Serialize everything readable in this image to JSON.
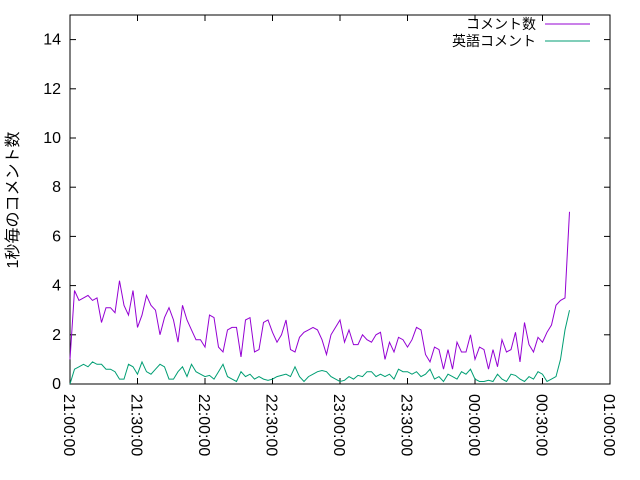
{
  "chart_data": {
    "type": "line",
    "title": "",
    "xlabel": "",
    "ylabel": "1秒毎のコメント数",
    "ylim": [
      0,
      15
    ],
    "xlim": [
      "21:00:00",
      "01:00:00"
    ],
    "y_ticks": [
      "0",
      "2",
      "4",
      "6",
      "8",
      "10",
      "12",
      "14"
    ],
    "x_ticks": [
      "21:00:00",
      "21:30:00",
      "22:00:00",
      "22:30:00",
      "23:00:00",
      "23:30:00",
      "00:00:00",
      "00:30:00",
      "01:00:00"
    ],
    "grid": false,
    "legend_position": "top-right",
    "x_step_minutes": 2,
    "x_start": "21:00",
    "series": [
      {
        "name": "コメント数",
        "color": "#9400d3",
        "values": [
          1.0,
          3.8,
          3.4,
          3.5,
          3.6,
          3.4,
          3.5,
          2.5,
          3.1,
          3.1,
          2.9,
          4.2,
          3.2,
          2.8,
          3.8,
          2.3,
          2.8,
          3.6,
          3.2,
          3.0,
          2.0,
          2.7,
          3.1,
          2.6,
          1.7,
          3.2,
          2.6,
          2.2,
          1.8,
          1.8,
          1.5,
          2.8,
          2.7,
          1.5,
          1.3,
          2.2,
          2.3,
          2.3,
          1.1,
          2.6,
          2.7,
          1.3,
          1.4,
          2.5,
          2.6,
          2.1,
          1.7,
          2.0,
          2.6,
          1.4,
          1.3,
          1.9,
          2.1,
          2.2,
          2.3,
          2.2,
          1.8,
          1.2,
          2.0,
          2.3,
          2.6,
          1.7,
          2.2,
          1.6,
          1.6,
          2.0,
          1.8,
          1.7,
          2.0,
          2.1,
          1.0,
          1.7,
          1.3,
          1.9,
          1.8,
          1.5,
          1.8,
          2.3,
          2.2,
          1.2,
          0.9,
          1.5,
          1.4,
          0.6,
          1.4,
          0.6,
          1.7,
          1.3,
          1.3,
          2.0,
          1.0,
          1.5,
          1.4,
          0.6,
          1.4,
          0.7,
          1.8,
          1.3,
          1.4,
          2.1,
          0.9,
          2.5,
          1.6,
          1.3,
          1.9,
          1.7,
          2.1,
          2.4,
          3.2,
          3.4,
          3.5,
          7.0
        ]
      },
      {
        "name": "英語コメント",
        "color": "#009e73",
        "values": [
          0.0,
          0.6,
          0.7,
          0.8,
          0.7,
          0.9,
          0.8,
          0.8,
          0.6,
          0.6,
          0.5,
          0.2,
          0.2,
          0.8,
          0.7,
          0.4,
          0.9,
          0.5,
          0.4,
          0.6,
          0.8,
          0.7,
          0.2,
          0.2,
          0.5,
          0.7,
          0.3,
          0.8,
          0.5,
          0.4,
          0.3,
          0.35,
          0.2,
          0.5,
          0.8,
          0.3,
          0.2,
          0.1,
          0.5,
          0.3,
          0.4,
          0.2,
          0.3,
          0.2,
          0.15,
          0.2,
          0.3,
          0.35,
          0.4,
          0.3,
          0.7,
          0.3,
          0.1,
          0.3,
          0.4,
          0.5,
          0.55,
          0.5,
          0.3,
          0.2,
          0.1,
          0.15,
          0.3,
          0.2,
          0.35,
          0.3,
          0.5,
          0.5,
          0.3,
          0.4,
          0.3,
          0.4,
          0.2,
          0.6,
          0.5,
          0.5,
          0.4,
          0.5,
          0.3,
          0.4,
          0.6,
          0.2,
          0.3,
          0.1,
          0.4,
          0.3,
          0.2,
          0.5,
          0.4,
          0.6,
          0.2,
          0.1,
          0.1,
          0.15,
          0.1,
          0.4,
          0.2,
          0.1,
          0.4,
          0.35,
          0.2,
          0.1,
          0.3,
          0.2,
          0.5,
          0.4,
          0.1,
          0.2,
          0.3,
          1.0,
          2.2,
          3.0
        ]
      }
    ]
  }
}
